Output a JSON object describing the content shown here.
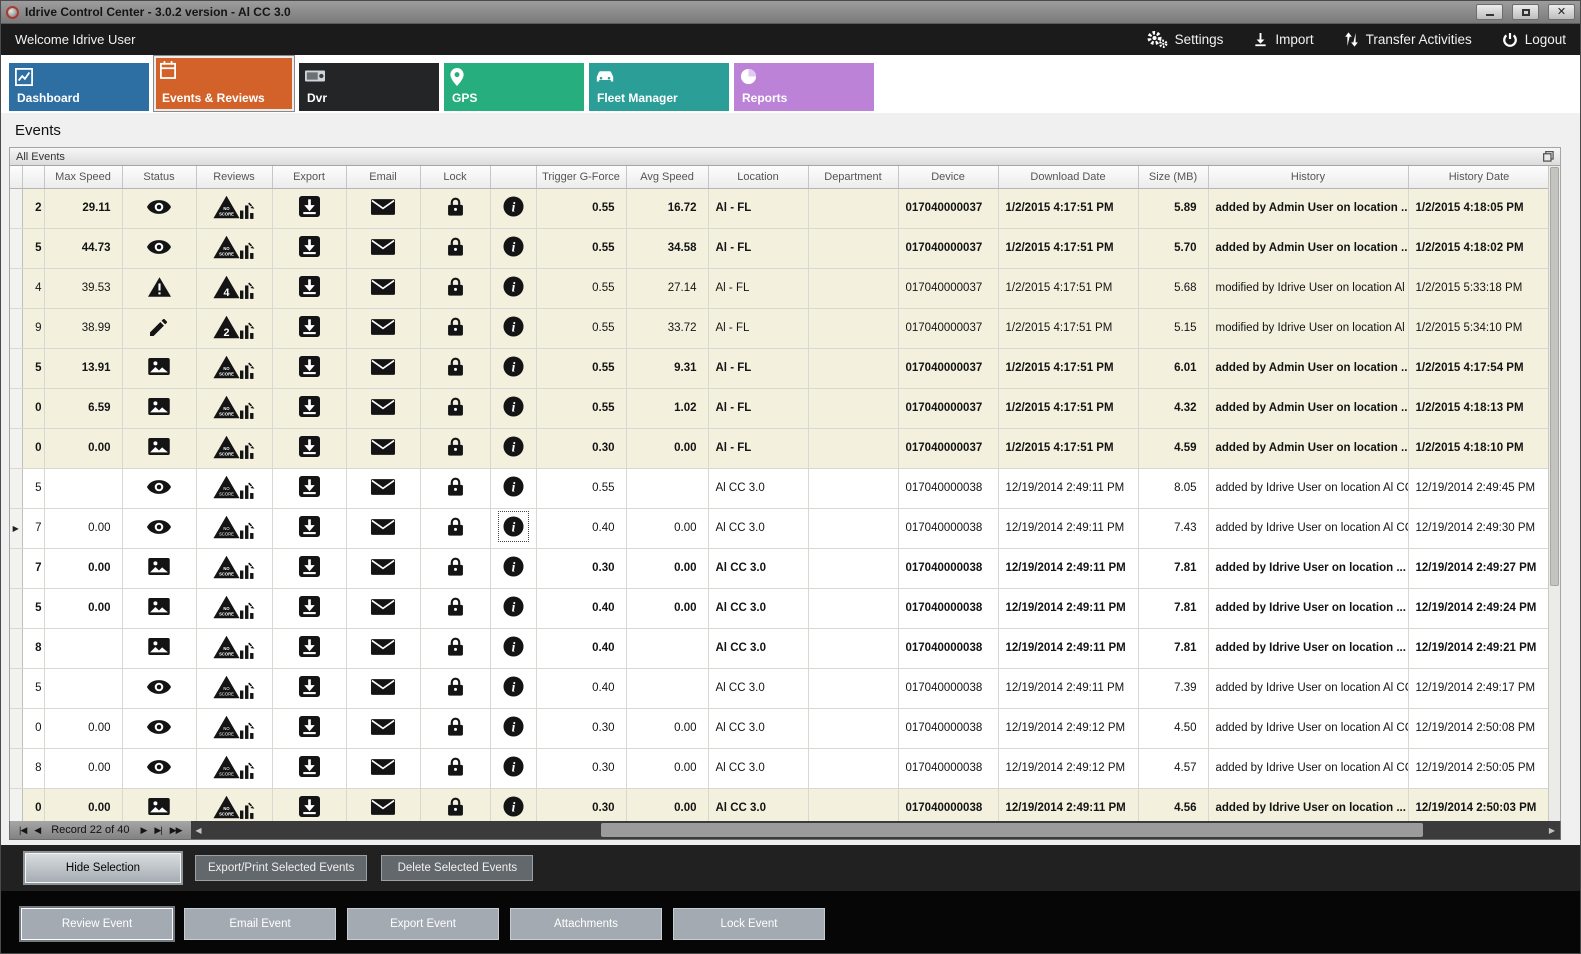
{
  "window": {
    "title": "Idrive Control Center - 3.0.2 version - Al CC 3.0"
  },
  "menubar": {
    "welcome": "Welcome Idrive User",
    "actions": [
      {
        "label": "Settings",
        "icon": "settings-gears-icon"
      },
      {
        "label": "Import",
        "icon": "import-icon"
      },
      {
        "label": "Transfer Activities",
        "icon": "transfer-arrows-icon"
      },
      {
        "label": "Logout",
        "icon": "power-icon"
      }
    ]
  },
  "tabs": [
    {
      "label": "Dashboard",
      "color": "#2d6fa3",
      "selected": false
    },
    {
      "label": "Events & Reviews",
      "color": "#d2622a",
      "selected": true
    },
    {
      "label": "Dvr",
      "color": "#232527",
      "selected": false
    },
    {
      "label": "GPS",
      "color": "#27ae7e",
      "selected": false
    },
    {
      "label": "Fleet Manager",
      "color": "#2b9e98",
      "selected": false
    },
    {
      "label": "Reports",
      "color": "#bb82d8",
      "selected": false
    }
  ],
  "page": {
    "title": "Events",
    "panel_title": "All Events"
  },
  "grid": {
    "columns": {
      "sel": "",
      "id": "",
      "maxSpeed": "Max Speed",
      "status": "Status",
      "reviews": "Reviews",
      "export": "Export",
      "email": "Email",
      "lock": "Lock",
      "info": "",
      "trigger": "Trigger G-Force",
      "avgSpeed": "Avg Speed",
      "location": "Location",
      "department": "Department",
      "device": "Device",
      "downloadDate": "Download Date",
      "size": "Size (MB)",
      "history": "History",
      "historyDate": "History Date"
    },
    "rows": [
      {
        "id": "2",
        "maxSpeed": "29.11",
        "status": "eye",
        "score": "NO SCORE",
        "trigger": "0.55",
        "avgSpeed": "16.72",
        "location": "Al - FL",
        "department": "",
        "device": "017040000037",
        "downloadDate": "1/2/2015 4:17:51 PM",
        "size": "5.89",
        "history": "added by Admin User on location ...",
        "historyDate": "1/2/2015 4:18:05 PM",
        "bold": true,
        "beige": true
      },
      {
        "id": "5",
        "maxSpeed": "44.73",
        "status": "eye",
        "score": "NO SCORE",
        "trigger": "0.55",
        "avgSpeed": "34.58",
        "location": "Al - FL",
        "department": "",
        "device": "017040000037",
        "downloadDate": "1/2/2015 4:17:51 PM",
        "size": "5.70",
        "history": "added by Admin User on location ...",
        "historyDate": "1/2/2015 4:18:02 PM",
        "bold": true,
        "beige": true
      },
      {
        "id": "4",
        "maxSpeed": "39.53",
        "status": "warning",
        "score": "4",
        "trigger": "0.55",
        "avgSpeed": "27.14",
        "location": "Al - FL",
        "department": "",
        "device": "017040000037",
        "downloadDate": "1/2/2015 4:17:51 PM",
        "size": "5.68",
        "history": "modified by Idrive User on location Al C...",
        "historyDate": "1/2/2015 5:33:18 PM",
        "bold": false,
        "beige": true
      },
      {
        "id": "9",
        "maxSpeed": "38.99",
        "status": "pencil",
        "score": "2",
        "trigger": "0.55",
        "avgSpeed": "33.72",
        "location": "Al - FL",
        "department": "",
        "device": "017040000037",
        "downloadDate": "1/2/2015 4:17:51 PM",
        "size": "5.15",
        "history": "modified by Idrive User on location Al C...",
        "historyDate": "1/2/2015 5:34:10 PM",
        "bold": false,
        "beige": true
      },
      {
        "id": "5",
        "maxSpeed": "13.91",
        "status": "picture",
        "score": "NO SCORE",
        "trigger": "0.55",
        "avgSpeed": "9.31",
        "location": "Al - FL",
        "department": "",
        "device": "017040000037",
        "downloadDate": "1/2/2015 4:17:51 PM",
        "size": "6.01",
        "history": "added by Admin User on location ...",
        "historyDate": "1/2/2015 4:17:54 PM",
        "bold": true,
        "beige": true
      },
      {
        "id": "0",
        "maxSpeed": "6.59",
        "status": "picture",
        "score": "NO SCORE",
        "trigger": "0.55",
        "avgSpeed": "1.02",
        "location": "Al - FL",
        "department": "",
        "device": "017040000037",
        "downloadDate": "1/2/2015 4:17:51 PM",
        "size": "4.32",
        "history": "added by Admin User on location ...",
        "historyDate": "1/2/2015 4:18:13 PM",
        "bold": true,
        "beige": true
      },
      {
        "id": "0",
        "maxSpeed": "0.00",
        "status": "picture",
        "score": "NO SCORE",
        "trigger": "0.30",
        "avgSpeed": "0.00",
        "location": "Al - FL",
        "department": "",
        "device": "017040000037",
        "downloadDate": "1/2/2015 4:17:51 PM",
        "size": "4.59",
        "history": "added by Admin User on location ...",
        "historyDate": "1/2/2015 4:18:10 PM",
        "bold": true,
        "beige": true
      },
      {
        "id": "5",
        "maxSpeed": "",
        "status": "eye",
        "score": "NO SCORE",
        "trigger": "0.55",
        "avgSpeed": "",
        "location": "Al CC 3.0",
        "department": "",
        "device": "017040000038",
        "downloadDate": "12/19/2014 2:49:11 PM",
        "size": "8.05",
        "history": "added by Idrive User on location Al CC ...",
        "historyDate": "12/19/2014 2:49:45 PM",
        "bold": false,
        "beige": false
      },
      {
        "id": "7",
        "maxSpeed": "0.00",
        "status": "eye",
        "score": "NO SCORE",
        "trigger": "0.40",
        "avgSpeed": "0.00",
        "location": "Al CC 3.0",
        "department": "",
        "device": "017040000038",
        "downloadDate": "12/19/2014 2:49:11 PM",
        "size": "7.43",
        "history": "added by Idrive User on location Al CC ...",
        "historyDate": "12/19/2014 2:49:30 PM",
        "bold": false,
        "beige": false,
        "current": true
      },
      {
        "id": "7",
        "maxSpeed": "0.00",
        "status": "picture",
        "score": "NO SCORE",
        "trigger": "0.30",
        "avgSpeed": "0.00",
        "location": "Al CC 3.0",
        "department": "",
        "device": "017040000038",
        "downloadDate": "12/19/2014 2:49:11 PM",
        "size": "7.81",
        "history": "added by Idrive User on location ...",
        "historyDate": "12/19/2014 2:49:27 PM",
        "bold": true,
        "beige": false
      },
      {
        "id": "5",
        "maxSpeed": "0.00",
        "status": "picture",
        "score": "NO SCORE",
        "trigger": "0.40",
        "avgSpeed": "0.00",
        "location": "Al CC 3.0",
        "department": "",
        "device": "017040000038",
        "downloadDate": "12/19/2014 2:49:11 PM",
        "size": "7.81",
        "history": "added by Idrive User on location ...",
        "historyDate": "12/19/2014 2:49:24 PM",
        "bold": true,
        "beige": false
      },
      {
        "id": "8",
        "maxSpeed": "",
        "status": "picture",
        "score": "NO SCORE",
        "trigger": "0.40",
        "avgSpeed": "",
        "location": "Al CC 3.0",
        "department": "",
        "device": "017040000038",
        "downloadDate": "12/19/2014 2:49:11 PM",
        "size": "7.81",
        "history": "added by Idrive User on location ...",
        "historyDate": "12/19/2014 2:49:21 PM",
        "bold": true,
        "beige": false
      },
      {
        "id": "5",
        "maxSpeed": "",
        "status": "eye",
        "score": "NO SCORE",
        "trigger": "0.40",
        "avgSpeed": "",
        "location": "Al CC 3.0",
        "department": "",
        "device": "017040000038",
        "downloadDate": "12/19/2014 2:49:11 PM",
        "size": "7.39",
        "history": "added by Idrive User on location Al CC ...",
        "historyDate": "12/19/2014 2:49:17 PM",
        "bold": false,
        "beige": false
      },
      {
        "id": "0",
        "maxSpeed": "0.00",
        "status": "eye",
        "score": "NO SCORE",
        "trigger": "0.30",
        "avgSpeed": "0.00",
        "location": "Al CC 3.0",
        "department": "",
        "device": "017040000038",
        "downloadDate": "12/19/2014 2:49:12 PM",
        "size": "4.50",
        "history": "added by Idrive User on location Al CC ...",
        "historyDate": "12/19/2014 2:50:08 PM",
        "bold": false,
        "beige": false
      },
      {
        "id": "8",
        "maxSpeed": "0.00",
        "status": "eye",
        "score": "NO SCORE",
        "trigger": "0.30",
        "avgSpeed": "0.00",
        "location": "Al CC 3.0",
        "department": "",
        "device": "017040000038",
        "downloadDate": "12/19/2014 2:49:12 PM",
        "size": "4.57",
        "history": "added by Idrive User on location Al CC ...",
        "historyDate": "12/19/2014 2:50:05 PM",
        "bold": false,
        "beige": false
      },
      {
        "id": "0",
        "maxSpeed": "0.00",
        "status": "picture",
        "score": "NO SCORE",
        "trigger": "0.30",
        "avgSpeed": "0.00",
        "location": "Al CC 3.0",
        "department": "",
        "device": "017040000038",
        "downloadDate": "12/19/2014 2:49:11 PM",
        "size": "4.56",
        "history": "added by Idrive User on location ...",
        "historyDate": "12/19/2014 2:50:03 PM",
        "bold": true,
        "beige": true
      }
    ]
  },
  "navigator": {
    "record_label": "Record 22 of 40"
  },
  "footer": {
    "row1": [
      "Hide Selection",
      "Export/Print Selected Events",
      "Delete Selected  Events"
    ],
    "row2": [
      "Review Event",
      "Email Event",
      "Export Event",
      "Attachments",
      "Lock Event"
    ]
  }
}
